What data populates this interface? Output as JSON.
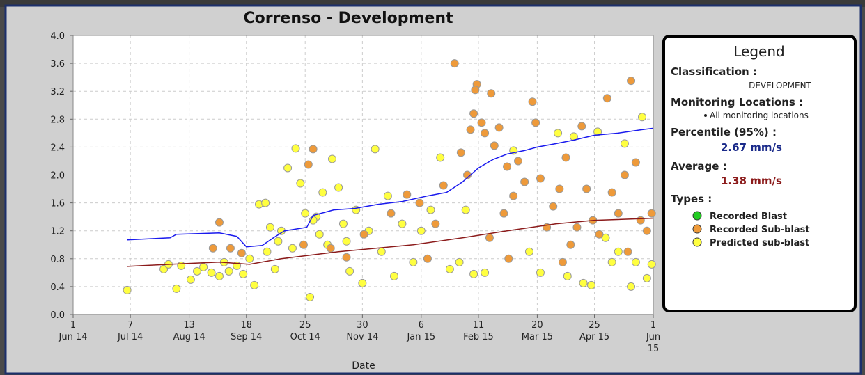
{
  "chart_data": {
    "type": "scatter",
    "title": "Correnso - Development",
    "x_label": "Date",
    "xlim": [
      "2014-06-01",
      "2015-06-01"
    ],
    "xticks": [
      {
        "value": "2014-06-01",
        "label": [
          "1",
          "Jun 14"
        ]
      },
      {
        "value": "2014-07-07",
        "label": [
          "7",
          "Jul 14"
        ]
      },
      {
        "value": "2014-08-13",
        "label": [
          "13",
          "Aug 14"
        ]
      },
      {
        "value": "2014-09-18",
        "label": [
          "18",
          "Sep 14"
        ]
      },
      {
        "value": "2014-10-25",
        "label": [
          "25",
          "Oct 14"
        ]
      },
      {
        "value": "2014-11-30",
        "label": [
          "30",
          "Nov 14"
        ]
      },
      {
        "value": "2015-01-06",
        "label": [
          "6",
          "Jan 15"
        ]
      },
      {
        "value": "2015-02-11",
        "label": [
          "11",
          "Feb 15"
        ]
      },
      {
        "value": "2015-03-20",
        "label": [
          "20",
          "Mar 15"
        ]
      },
      {
        "value": "2015-04-25",
        "label": [
          "25",
          "Apr 15"
        ]
      },
      {
        "value": "2015-06-01",
        "label": [
          "1",
          "Jun",
          "15"
        ]
      }
    ],
    "ylim": [
      0,
      4
    ],
    "yticks": [
      {
        "value": 0,
        "label": "0.0"
      },
      0.4,
      0.8,
      1.2,
      1.6,
      {
        "value": 2,
        "label": "2.0"
      },
      2.4,
      2.8,
      3.2,
      3.6,
      {
        "value": 4,
        "label": "4.0"
      }
    ],
    "grid": true,
    "legend": {
      "title": "Legend",
      "classification_label": "Classification :",
      "classification": "DEVELOPMENT",
      "locations_label": "Monitoring Locations :",
      "locations": "All monitoring locations",
      "percentile_label": "Percentile (95%) :",
      "percentile": "2.67 mm/s",
      "average_label": "Average :",
      "average": "1.38 mm/s",
      "types_label": "Types :"
    },
    "series": [
      {
        "name": "Recorded Blast",
        "type": "scatter",
        "color": "#22cc22",
        "x": [],
        "values": []
      },
      {
        "name": "Recorded Sub-blast",
        "type": "scatter",
        "color": "#ee9a3a",
        "x": [
          "2014-09-01",
          "2014-08-28",
          "2014-09-08",
          "2014-09-15",
          "2014-10-30",
          "2014-10-27",
          "2014-11-20",
          "2014-12-28",
          "2015-01-10",
          "2015-01-20",
          "2015-01-27",
          "2015-01-31",
          "2015-02-04",
          "2015-02-06",
          "2015-02-08",
          "2015-02-10",
          "2015-02-09",
          "2015-02-13",
          "2015-02-15",
          "2015-02-19",
          "2015-02-21",
          "2015-02-24",
          "2015-02-27",
          "2015-03-01",
          "2015-03-05",
          "2015-03-08",
          "2015-03-12",
          "2015-03-17",
          "2015-03-19",
          "2015-03-22",
          "2015-03-26",
          "2015-03-30",
          "2015-04-03",
          "2015-04-07",
          "2015-04-10",
          "2015-04-14",
          "2015-04-17",
          "2015-04-20",
          "2015-04-24",
          "2015-04-28",
          "2015-05-03",
          "2015-05-06",
          "2015-05-10",
          "2015-05-14",
          "2015-05-18",
          "2015-05-21",
          "2015-05-24",
          "2015-05-28",
          "2015-05-31",
          "2015-02-18",
          "2015-01-15",
          "2015-01-05",
          "2014-12-18",
          "2014-12-01",
          "2014-11-10",
          "2014-10-24",
          "2015-03-02",
          "2015-04-05",
          "2015-05-16"
        ],
        "values": [
          1.32,
          0.95,
          0.95,
          0.88,
          2.37,
          2.15,
          0.82,
          1.72,
          0.8,
          1.85,
          3.6,
          2.32,
          2.0,
          2.65,
          2.88,
          3.3,
          3.22,
          2.75,
          2.6,
          3.17,
          2.42,
          2.68,
          1.45,
          2.12,
          1.7,
          2.2,
          1.9,
          3.05,
          2.75,
          1.95,
          1.25,
          1.55,
          1.8,
          2.25,
          1.0,
          1.25,
          2.7,
          1.8,
          1.35,
          1.15,
          3.1,
          1.75,
          1.45,
          2.0,
          3.35,
          2.18,
          1.35,
          1.2,
          1.45,
          1.1,
          1.3,
          1.6,
          1.45,
          1.15,
          0.95,
          1.0,
          0.8,
          0.75,
          0.9
        ]
      },
      {
        "name": "Predicted sub-blast",
        "type": "scatter",
        "color": "#ffff40",
        "x": [
          "2014-07-05",
          "2014-07-28",
          "2014-07-31",
          "2014-08-05",
          "2014-08-08",
          "2014-08-14",
          "2014-08-18",
          "2014-08-22",
          "2014-08-27",
          "2014-09-01",
          "2014-09-04",
          "2014-09-07",
          "2014-09-12",
          "2014-09-16",
          "2014-09-20",
          "2014-09-23",
          "2014-09-26",
          "2014-09-30",
          "2014-10-03",
          "2014-10-06",
          "2014-10-10",
          "2014-10-14",
          "2014-10-19",
          "2014-10-22",
          "2014-10-25",
          "2014-10-28",
          "2014-11-01",
          "2014-11-05",
          "2014-11-08",
          "2014-11-11",
          "2014-11-15",
          "2014-11-18",
          "2014-11-22",
          "2014-11-26",
          "2014-11-30",
          "2014-12-04",
          "2014-12-08",
          "2014-12-12",
          "2014-12-16",
          "2014-12-20",
          "2014-12-25",
          "2015-01-01",
          "2015-01-06",
          "2015-01-12",
          "2015-01-18",
          "2015-01-24",
          "2015-01-30",
          "2015-02-03",
          "2015-02-08",
          "2015-02-15",
          "2015-03-05",
          "2015-03-15",
          "2015-03-22",
          "2015-04-02",
          "2015-04-08",
          "2015-04-12",
          "2015-04-18",
          "2015-04-23",
          "2015-04-27",
          "2015-05-02",
          "2015-05-06",
          "2015-05-10",
          "2015-05-14",
          "2015-05-18",
          "2015-05-21",
          "2015-05-25",
          "2015-05-28",
          "2015-05-31",
          "2014-10-01",
          "2014-10-08",
          "2014-10-17",
          "2014-11-03",
          "2014-11-20",
          "2014-10-30"
        ],
        "values": [
          0.35,
          0.65,
          0.72,
          0.37,
          0.7,
          0.5,
          0.62,
          0.68,
          0.6,
          0.55,
          0.75,
          0.62,
          0.7,
          0.58,
          0.8,
          0.42,
          1.58,
          1.6,
          1.25,
          0.65,
          1.2,
          2.1,
          2.38,
          1.88,
          1.45,
          0.25,
          1.4,
          1.75,
          1.0,
          2.23,
          1.82,
          1.3,
          0.62,
          1.5,
          0.45,
          1.2,
          2.37,
          0.9,
          1.7,
          0.55,
          1.3,
          0.75,
          1.2,
          1.5,
          2.25,
          0.65,
          0.75,
          1.5,
          0.58,
          0.6,
          2.35,
          0.9,
          0.6,
          2.6,
          0.55,
          2.55,
          0.45,
          0.42,
          2.62,
          1.1,
          0.75,
          0.9,
          2.45,
          0.4,
          0.75,
          2.83,
          0.52,
          0.72,
          0.9,
          1.05,
          0.95,
          1.15,
          1.05,
          1.35
        ]
      },
      {
        "type": "line",
        "color": "#1a1aee",
        "x": [
          "2014-07-05",
          "2014-08-01",
          "2014-08-05",
          "2014-09-01",
          "2014-09-12",
          "2014-09-18",
          "2014-09-28",
          "2014-10-05",
          "2014-10-12",
          "2014-10-26",
          "2014-10-30",
          "2014-11-12",
          "2014-11-25",
          "2014-12-10",
          "2014-12-25",
          "2015-01-10",
          "2015-01-22",
          "2015-02-01",
          "2015-02-11",
          "2015-02-20",
          "2015-03-01",
          "2015-03-12",
          "2015-03-20",
          "2015-04-01",
          "2015-04-12",
          "2015-04-25",
          "2015-05-10",
          "2015-05-25",
          "2015-06-01"
        ],
        "values": [
          1.07,
          1.1,
          1.15,
          1.17,
          1.12,
          0.97,
          0.99,
          1.1,
          1.2,
          1.25,
          1.42,
          1.5,
          1.52,
          1.58,
          1.62,
          1.7,
          1.75,
          1.9,
          2.1,
          2.22,
          2.3,
          2.35,
          2.4,
          2.45,
          2.5,
          2.57,
          2.6,
          2.65,
          2.67
        ]
      },
      {
        "type": "line",
        "color": "#8b1a1a",
        "x": [
          "2014-07-05",
          "2014-08-01",
          "2014-09-01",
          "2014-09-20",
          "2014-10-10",
          "2014-11-15",
          "2015-01-01",
          "2015-02-01",
          "2015-03-01",
          "2015-04-01",
          "2015-04-25",
          "2015-06-01"
        ],
        "values": [
          0.69,
          0.72,
          0.75,
          0.72,
          0.8,
          0.9,
          1.0,
          1.1,
          1.2,
          1.3,
          1.35,
          1.38
        ]
      }
    ]
  }
}
